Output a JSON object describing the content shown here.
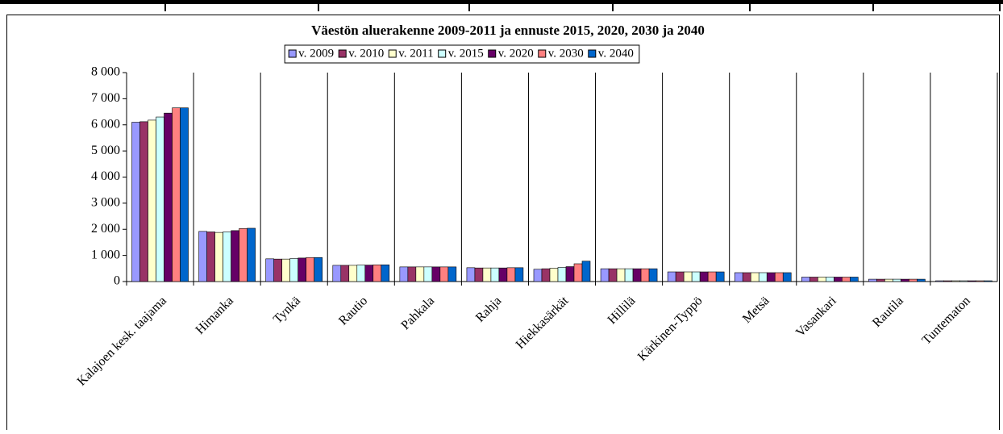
{
  "chart_data": {
    "type": "bar",
    "title": "Väestön aluerakenne 2009-2011 ja ennuste 2015, 2020, 2030 ja 2040",
    "categories": [
      "Kalajoen kesk. taajama",
      "Himanka",
      "Tynkä",
      "Rautio",
      "Pahkala",
      "Rahja",
      "Hiekkasärkät",
      "Hillilä",
      "Kärkinen-Typpö",
      "Metsä",
      "Vasankari",
      "Rautila",
      "Tuntematon"
    ],
    "series": [
      {
        "name": "v. 2009",
        "color": "#9999ff",
        "values": [
          6100,
          1920,
          870,
          620,
          560,
          530,
          470,
          490,
          370,
          340,
          170,
          90,
          30
        ]
      },
      {
        "name": "v. 2010",
        "color": "#993366",
        "values": [
          6120,
          1900,
          860,
          620,
          560,
          520,
          490,
          490,
          370,
          340,
          170,
          90,
          30
        ]
      },
      {
        "name": "v. 2011",
        "color": "#ffffcc",
        "values": [
          6180,
          1880,
          860,
          620,
          560,
          520,
          510,
          490,
          370,
          340,
          170,
          90,
          30
        ]
      },
      {
        "name": "v. 2015",
        "color": "#ccffff",
        "values": [
          6300,
          1900,
          880,
          630,
          560,
          520,
          540,
          490,
          370,
          340,
          170,
          90,
          30
        ]
      },
      {
        "name": "v. 2020",
        "color": "#660066",
        "values": [
          6450,
          1950,
          900,
          630,
          560,
          520,
          570,
          490,
          370,
          340,
          170,
          90,
          30
        ]
      },
      {
        "name": "v. 2030",
        "color": "#ff8080",
        "values": [
          6650,
          2030,
          920,
          640,
          560,
          530,
          680,
          490,
          370,
          340,
          170,
          90,
          30
        ]
      },
      {
        "name": "v. 2040",
        "color": "#0066cc",
        "values": [
          6650,
          2040,
          920,
          640,
          560,
          530,
          780,
          490,
          370,
          340,
          170,
          90,
          30
        ]
      }
    ],
    "ylim": [
      0,
      8000
    ],
    "yticks": [
      0,
      {
        "value": 1000,
        "label": "1 000"
      },
      {
        "value": 2000,
        "label": "2 000"
      },
      {
        "value": 3000,
        "label": "3 000"
      },
      {
        "value": 4000,
        "label": "4 000"
      },
      {
        "value": 5000,
        "label": "5 000"
      },
      {
        "value": 6000,
        "label": "6 000"
      },
      {
        "value": 7000,
        "label": "7 000"
      },
      {
        "value": 8000,
        "label": "8 000"
      }
    ],
    "grid": true
  }
}
